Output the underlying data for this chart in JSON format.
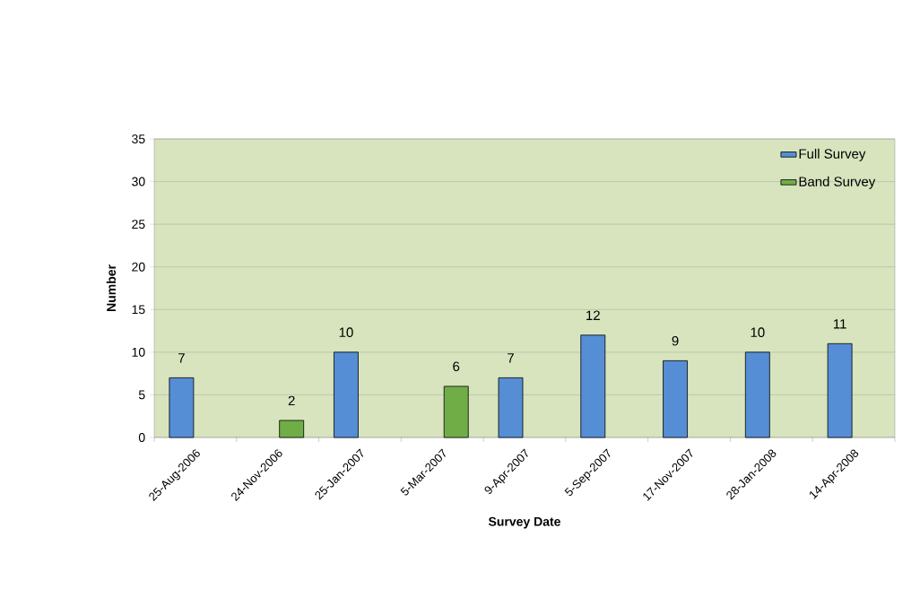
{
  "chart_data": {
    "type": "bar",
    "xlabel": "Survey Date",
    "ylabel": "Number",
    "categories": [
      "25-Aug-2006",
      "24-Nov-2006",
      "25-Jan-2007",
      "5-Mar-2007",
      "9-Apr-2007",
      "5-Sep-2007",
      "17-Nov-2007",
      "28-Jan-2008",
      "14-Apr-2008"
    ],
    "series": [
      {
        "name": "Full Survey",
        "color": "#558ed5",
        "values": [
          7,
          null,
          10,
          null,
          7,
          12,
          9,
          10,
          11
        ]
      },
      {
        "name": "Band Survey",
        "color": "#70ad47",
        "values": [
          null,
          2,
          null,
          6,
          null,
          null,
          null,
          null,
          null
        ]
      }
    ],
    "ylim": [
      0,
      35
    ],
    "yticks": [
      0,
      5,
      10,
      15,
      20,
      25,
      30,
      35
    ],
    "grid": "y",
    "legend": "top right",
    "data_labels": true
  }
}
